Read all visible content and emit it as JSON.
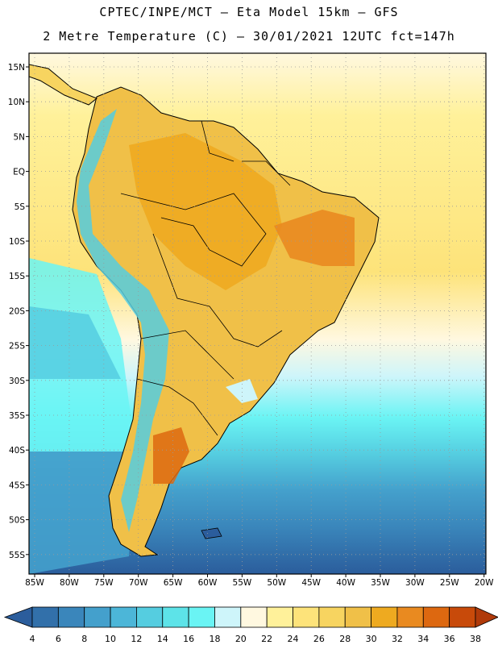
{
  "header": {
    "line1": "CPTEC/INPE/MCT –  Eta Model 15km – GFS",
    "line2": "2 Metre Temperature (C) – 30/01/2021 12UTC fct=147h"
  },
  "map": {
    "lat_labels": [
      "15N",
      "10N",
      "5N",
      "EQ",
      "5S",
      "10S",
      "15S",
      "20S",
      "25S",
      "30S",
      "35S",
      "40S",
      "45S",
      "50S",
      "55S"
    ],
    "lon_labels": [
      "85W",
      "80W",
      "75W",
      "70W",
      "65W",
      "60W",
      "55W",
      "50W",
      "45W",
      "40W",
      "35W",
      "30W",
      "25W",
      "20W"
    ],
    "region": "South America"
  },
  "legend": {
    "labels": [
      "4",
      "6",
      "8",
      "10",
      "12",
      "14",
      "16",
      "18",
      "20",
      "22",
      "24",
      "26",
      "28",
      "30",
      "32",
      "34",
      "36",
      "38"
    ],
    "colors": [
      "#2b5d9c",
      "#3270aa",
      "#3a86bb",
      "#44a0cc",
      "#4cb6d8",
      "#55cde0",
      "#5de3e8",
      "#6af4f4",
      "#cef5fa",
      "#fff8e0",
      "#fff19a",
      "#fde37a",
      "#f7d460",
      "#f0c048",
      "#eeaa20",
      "#e98a20",
      "#dd6810",
      "#c84a0a",
      "#b03a0a"
    ]
  }
}
